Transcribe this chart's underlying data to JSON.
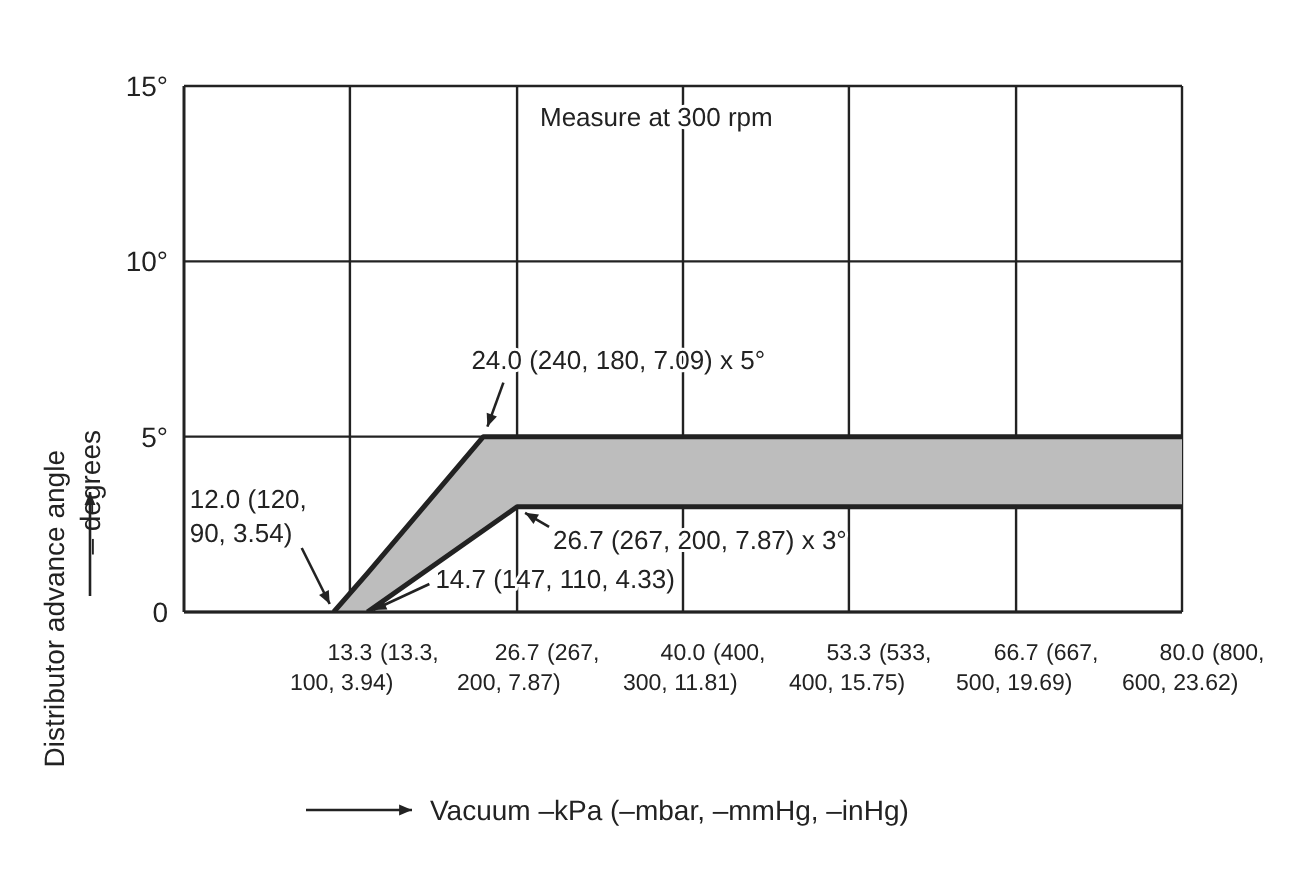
{
  "chart_data": {
    "type": "line",
    "xlabel": "Vacuum –kPa (–mbar, –mmHg, –inHg)",
    "ylabel": "Distributor advance angle\n– degrees",
    "xlim": [
      0,
      80
    ],
    "xticks": [
      {
        "value": 13.3,
        "label": "13.3"
      },
      {
        "value": 26.7,
        "label": "26.7"
      },
      {
        "value": 40,
        "label": "40.0"
      },
      {
        "value": 53.3,
        "label": "53.3"
      },
      {
        "value": 66.7,
        "label": "66.7"
      },
      {
        "value": 80,
        "label": "80.0"
      }
    ],
    "ylim": [
      0,
      15
    ],
    "yticks": [
      {
        "value": 0,
        "label": "0"
      },
      {
        "value": 5,
        "label": "5°"
      },
      {
        "value": 10,
        "label": "10°"
      },
      {
        "value": 15,
        "label": "15°"
      }
    ],
    "grid": true,
    "line_style": "solid",
    "series": [
      {
        "color": "#222222",
        "x": [
          12,
          14.7,
          24,
          26.7,
          80
        ],
        "values": [
          0,
          1.1,
          5,
          5,
          5
        ],
        "lower": [
          0,
          0,
          2.3,
          3,
          3
        ],
        "upper": [
          0,
          1.1,
          5,
          5,
          5
        ]
      },
      {
        "color": "#222222",
        "x": [
          14.7,
          26.7,
          80
        ],
        "values": [
          0,
          3,
          3
        ]
      }
    ],
    "annotations": [
      "Measure at 300 rpm",
      {
        "text": "24.0 (240, 180, 7.09) x 5°",
        "x": 24,
        "y": 5
      },
      {
        "text": "12.0 (120,\n90, 3.54)",
        "x": 12,
        "y": 0
      },
      {
        "text": "26.7 (267, 200, 7.87) x 3°",
        "x": 26.7,
        "y": 3
      },
      {
        "text": "14.7 (147, 110, 4.33)",
        "x": 14.7,
        "y": 0
      },
      "(13.3,\n100, 3.94)",
      "(267,\n200, 7.87)",
      "(400,\n300, 11.81)",
      "(533,\n400, 15.75)",
      "(667,\n500, 19.69)",
      "(800,\n600, 23.62)"
    ]
  }
}
